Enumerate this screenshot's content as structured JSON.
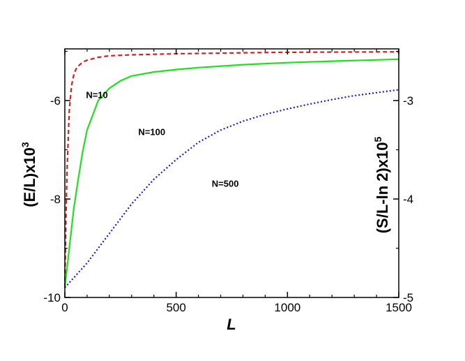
{
  "chart_data": {
    "type": "line",
    "xlabel": "L",
    "ylabel_left": "(E/L)x10",
    "ylabel_left_sup": "3",
    "ylabel_right": "(S/L-ln 2)x10",
    "ylabel_right_sup": "5",
    "xlim": [
      0,
      1500
    ],
    "ylim_left": [
      -10,
      -4.95
    ],
    "ylim_right": [
      -5,
      -2.475
    ],
    "x_ticks": [
      0,
      500,
      1000,
      1500
    ],
    "x_tick_labels": [
      "0",
      "500",
      "1000",
      "1500"
    ],
    "y_left_ticks": [
      -10,
      -8,
      -6
    ],
    "y_left_tick_labels": [
      "-10",
      "-8",
      "-6"
    ],
    "y_right_ticks": [
      -5,
      -4,
      -3
    ],
    "y_right_tick_labels": [
      "-5",
      "-4",
      "-3"
    ],
    "grid": false,
    "series": [
      {
        "name": "N=10",
        "color": "#d42020",
        "dash": "dashed",
        "x": [
          0,
          5,
          10,
          20,
          30,
          40,
          50,
          60,
          80,
          100,
          150,
          200,
          300,
          500,
          800,
          1000,
          1500
        ],
        "y": [
          -9.8,
          -8.4,
          -7.4,
          -6.2,
          -5.7,
          -5.48,
          -5.36,
          -5.3,
          -5.22,
          -5.18,
          -5.12,
          -5.09,
          -5.07,
          -5.05,
          -5.03,
          -5.02,
          -5.01
        ]
      },
      {
        "name": "N=100",
        "color": "#1ee01e",
        "dash": "solid",
        "x": [
          0,
          20,
          40,
          60,
          80,
          100,
          150,
          200,
          250,
          300,
          400,
          500,
          600,
          800,
          1000,
          1200,
          1500
        ],
        "y": [
          -9.8,
          -9.0,
          -8.2,
          -7.6,
          -7.05,
          -6.6,
          -6.0,
          -5.75,
          -5.6,
          -5.5,
          -5.42,
          -5.37,
          -5.33,
          -5.27,
          -5.23,
          -5.2,
          -5.16
        ]
      },
      {
        "name": "N=500",
        "color": "#1a1acc",
        "dash": "dotted",
        "x": [
          0,
          50,
          100,
          150,
          200,
          300,
          400,
          500,
          600,
          700,
          800,
          900,
          1000,
          1100,
          1200,
          1300,
          1400,
          1500
        ],
        "y": [
          -9.8,
          -9.55,
          -9.3,
          -9.0,
          -8.7,
          -8.1,
          -7.6,
          -7.2,
          -6.85,
          -6.6,
          -6.42,
          -6.28,
          -6.17,
          -6.07,
          -5.98,
          -5.9,
          -5.84,
          -5.78
        ]
      }
    ],
    "annotations": [
      {
        "text": "N=10",
        "series": 0,
        "at_x": 95,
        "at_y": -5.95
      },
      {
        "text": "N=100",
        "series": 1,
        "at_x": 330,
        "at_y": -6.7
      },
      {
        "text": "N=500",
        "series": 2,
        "at_x": 660,
        "at_y": -7.75
      }
    ]
  }
}
